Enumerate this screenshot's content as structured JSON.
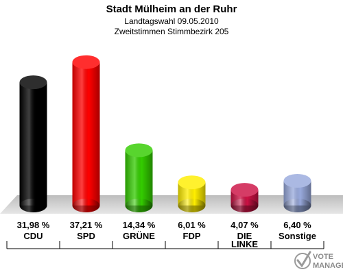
{
  "chart_data": {
    "type": "bar",
    "title": "Stadt Mülheim an der Ruhr",
    "subtitle_1": "Landtagswahl 09.05.2010",
    "subtitle_2": "Zweitstimmen Stimmbezirk 205",
    "categories": [
      [
        "CDU"
      ],
      [
        "SPD"
      ],
      [
        "GRÜNE"
      ],
      [
        "FDP"
      ],
      [
        "DIE",
        "LINKE"
      ],
      [
        "Sonstige"
      ]
    ],
    "values": [
      31.98,
      37.21,
      14.34,
      6.01,
      4.07,
      6.4
    ],
    "value_labels": [
      "31,98 %",
      "37,21 %",
      "14,34 %",
      "6,01 %",
      "4,07 %",
      "6,40 %"
    ],
    "colors": [
      "#000000",
      "#ff0000",
      "#33cc00",
      "#ffee00",
      "#cc1144",
      "#99aadd"
    ],
    "ylim": [
      0,
      40
    ],
    "grid": false,
    "legend": "none"
  },
  "logo": {
    "line1": "VOTE",
    "line2": "MANAGER"
  }
}
